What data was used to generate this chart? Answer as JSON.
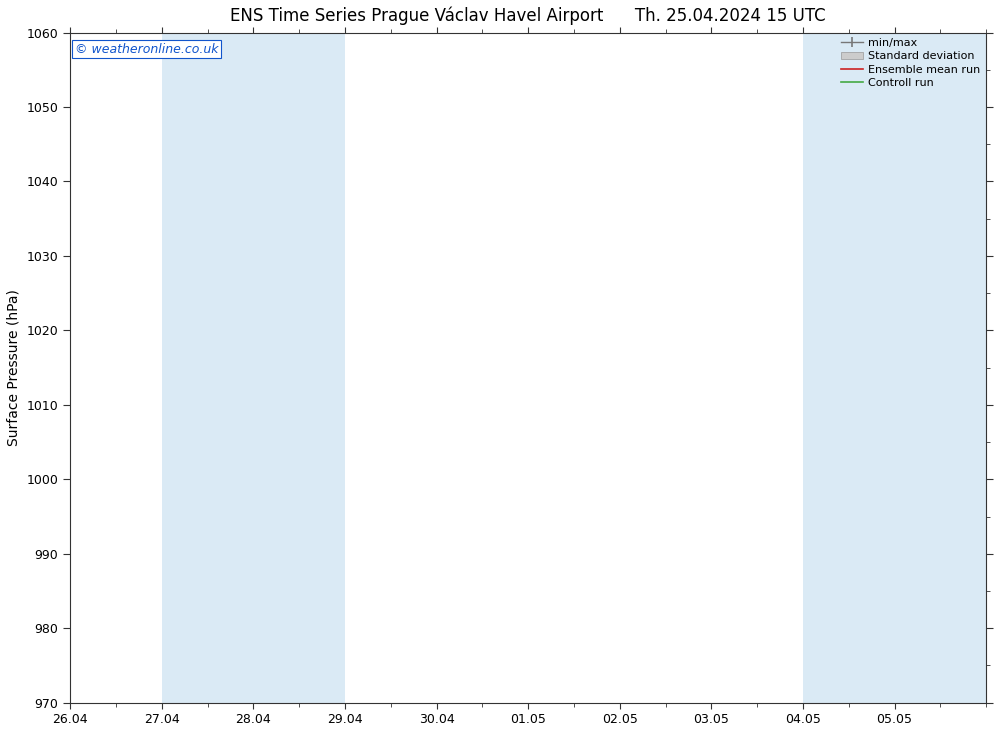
{
  "title_left": "ENS Time Series Prague Václav Havel Airport",
  "title_right": "Th. 25.04.2024 15 UTC",
  "ylabel": "Surface Pressure (hPa)",
  "background_color": "#ffffff",
  "plot_bg_color": "#ffffff",
  "ylim": [
    970,
    1060
  ],
  "yticks": [
    970,
    980,
    990,
    1000,
    1010,
    1020,
    1030,
    1040,
    1050,
    1060
  ],
  "xlim_start": 0,
  "xlim_end": 10,
  "xtick_labels": [
    "26.04",
    "27.04",
    "28.04",
    "29.04",
    "30.04",
    "01.05",
    "02.05",
    "03.05",
    "04.05",
    "05.05"
  ],
  "shaded_bands": [
    {
      "x_start": 1.0,
      "x_end": 3.0,
      "color": "#daeaf5"
    },
    {
      "x_start": 8.0,
      "x_end": 8.5,
      "color": "#daeaf5"
    },
    {
      "x_start": 8.5,
      "x_end": 9.5,
      "color": "#daeaf5"
    },
    {
      "x_start": 9.5,
      "x_end": 10.0,
      "color": "#daeaf5"
    }
  ],
  "copyright_text": "© weatheronline.co.uk",
  "copyright_color": "#1155cc",
  "legend_labels": [
    "min/max",
    "Standard deviation",
    "Ensemble mean run",
    "Controll run"
  ],
  "legend_line_colors": [
    "#888888",
    "#bbbbbb",
    "#cc2222",
    "#44aa44"
  ],
  "spine_color": "#333333",
  "tick_color": "#333333",
  "title_fontsize": 12,
  "axis_label_fontsize": 10,
  "tick_fontsize": 9
}
